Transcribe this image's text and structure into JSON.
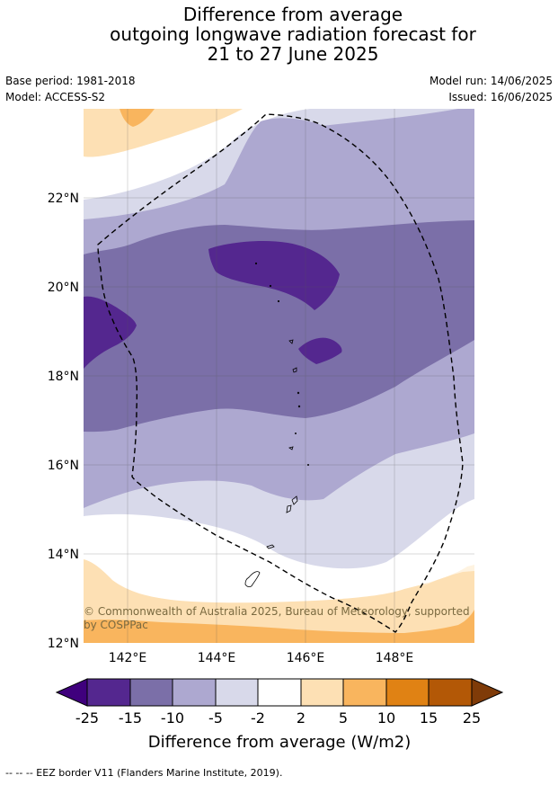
{
  "title": {
    "line1": "Difference from average",
    "line2": "outgoing longwave radiation forecast for",
    "line3": "21 to 27 June 2025"
  },
  "meta": {
    "base_period": "Base period: 1981-2018",
    "model": "Model: ACCESS-S2",
    "model_run": "Model run: 14/06/2025",
    "issued": "Issued: 16/06/2025"
  },
  "map": {
    "lat_labels": [
      "22°N",
      "20°N",
      "18°N",
      "16°N",
      "14°N",
      "12°N"
    ],
    "lon_labels": [
      "142°E",
      "144°E",
      "146°E",
      "148°E"
    ],
    "credit_line1": "© Commonwealth of Australia 2025, Bureau of Meteorology, supported",
    "credit_line2": "by COSPPac"
  },
  "colorbar": {
    "ticks": [
      "-25",
      "-15",
      "-10",
      "-5",
      "-2",
      "2",
      "5",
      "10",
      "15",
      "25"
    ],
    "colors": [
      "#3f007d",
      "#54278f",
      "#7b6fa8",
      "#ada8d0",
      "#d8d9ea",
      "#ffffff",
      "#fde0b4",
      "#f9b55e",
      "#e08214",
      "#b35806",
      "#7f3b08"
    ],
    "label": "Difference from average (W/m2)"
  },
  "footer": "--  --  -- EEZ border V11 (Flanders Marine Institute, 2019)."
}
